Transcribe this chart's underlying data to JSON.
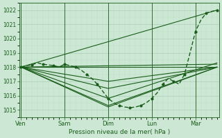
{
  "xlabel": "Pression niveau de la mer( hPa )",
  "ylim": [
    1014.5,
    1022.5
  ],
  "yticks": [
    1015,
    1016,
    1017,
    1018,
    1019,
    1020,
    1021,
    1022
  ],
  "xtick_labels": [
    "Ven",
    "Sam",
    "Dim",
    "Lun",
    "Mar"
  ],
  "xtick_positions": [
    0,
    24,
    48,
    72,
    96
  ],
  "xlim": [
    -1,
    109
  ],
  "bg_color": "#cce8d4",
  "plot_bg_color": "#cce8d4",
  "grid_major_color": "#aacfb8",
  "grid_minor_color": "#bbdac5",
  "line_color": "#1a5c1a",
  "ensemble_lines": [
    {
      "x": [
        0,
        108
      ],
      "y": [
        1018.0,
        1022.0
      ]
    },
    {
      "x": [
        0,
        48,
        108
      ],
      "y": [
        1018.0,
        1015.2,
        1018.0
      ]
    },
    {
      "x": [
        0,
        48,
        108
      ],
      "y": [
        1018.0,
        1015.3,
        1018.0
      ]
    },
    {
      "x": [
        0,
        48,
        108
      ],
      "y": [
        1018.0,
        1015.8,
        1018.3
      ]
    },
    {
      "x": [
        0,
        108
      ],
      "y": [
        1018.0,
        1018.2
      ]
    },
    {
      "x": [
        0,
        108
      ],
      "y": [
        1018.0,
        1018.0
      ]
    },
    {
      "x": [
        0,
        48,
        108
      ],
      "y": [
        1018.0,
        1017.0,
        1018.0
      ]
    },
    {
      "x": [
        0,
        48,
        108
      ],
      "y": [
        1018.0,
        1016.5,
        1018.0
      ]
    }
  ],
  "obs_x": [
    0,
    3,
    6,
    9,
    12,
    15,
    18,
    21,
    24,
    27,
    30,
    33,
    36,
    39,
    42,
    45,
    48,
    51,
    54,
    57,
    60,
    63,
    66,
    69,
    72,
    75,
    78,
    81,
    84,
    87,
    90,
    93,
    96,
    99,
    102,
    105,
    108
  ],
  "obs_y": [
    1018.0,
    1018.1,
    1018.15,
    1018.3,
    1018.2,
    1018.15,
    1018.1,
    1018.0,
    1018.2,
    1018.1,
    1018.0,
    1017.8,
    1017.5,
    1017.2,
    1016.8,
    1016.3,
    1015.8,
    1015.5,
    1015.3,
    1015.2,
    1015.15,
    1015.2,
    1015.3,
    1015.5,
    1015.8,
    1016.2,
    1016.8,
    1017.2,
    1017.0,
    1016.8,
    1017.5,
    1019.0,
    1020.5,
    1021.3,
    1021.8,
    1021.9,
    1022.0
  ]
}
